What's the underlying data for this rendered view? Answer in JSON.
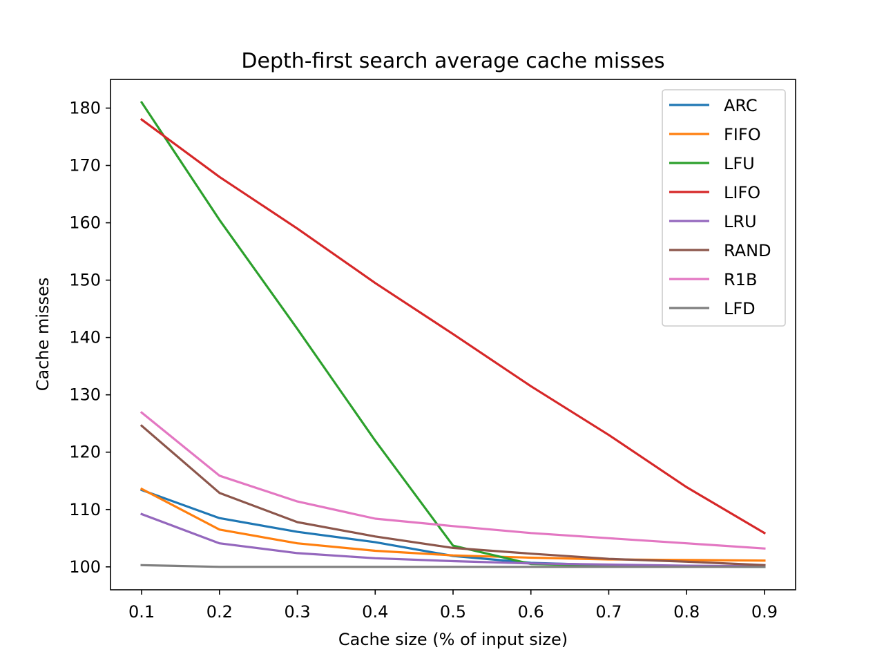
{
  "chart_data": {
    "type": "line",
    "title": "Depth-first search average cache misses",
    "xlabel": "Cache size (% of input size)",
    "ylabel": "Cache misses",
    "x": [
      0.1,
      0.2,
      0.3,
      0.4,
      0.5,
      0.6,
      0.7,
      0.8,
      0.9
    ],
    "x_ticks": [
      "0.1",
      "0.2",
      "0.3",
      "0.4",
      "0.5",
      "0.6",
      "0.7",
      "0.8",
      "0.9"
    ],
    "y_ticks": [
      "100",
      "110",
      "120",
      "130",
      "140",
      "150",
      "160",
      "170",
      "180"
    ],
    "xlim": [
      0.06,
      0.94
    ],
    "ylim": [
      96,
      185
    ],
    "grid": false,
    "legend_position": "top-right",
    "series": [
      {
        "name": "ARC",
        "color": "#1f77b4",
        "values": [
          113.4,
          108.5,
          106.1,
          104.3,
          101.9,
          100.7,
          100.3,
          100.1,
          100.0
        ]
      },
      {
        "name": "FIFO",
        "color": "#ff7f0e",
        "values": [
          113.6,
          106.5,
          104.1,
          102.8,
          102.0,
          101.6,
          101.3,
          101.2,
          101.1
        ]
      },
      {
        "name": "LFU",
        "color": "#2ca02c",
        "values": [
          181.0,
          160.5,
          141.5,
          122.0,
          103.7,
          100.5,
          100.2,
          100.1,
          100.0
        ]
      },
      {
        "name": "LIFO",
        "color": "#d62728",
        "values": [
          178.0,
          168.0,
          159.0,
          149.5,
          140.6,
          131.5,
          123.0,
          113.9,
          105.9
        ]
      },
      {
        "name": "LRU",
        "color": "#9467bd",
        "values": [
          109.2,
          104.1,
          102.4,
          101.5,
          101.0,
          100.6,
          100.4,
          100.2,
          100.1
        ]
      },
      {
        "name": "RAND",
        "color": "#8c564b",
        "values": [
          124.6,
          112.9,
          107.8,
          105.3,
          103.3,
          102.3,
          101.4,
          100.9,
          100.3
        ]
      },
      {
        "name": "R1B",
        "color": "#e377c2",
        "values": [
          126.9,
          115.9,
          111.4,
          108.4,
          107.1,
          105.9,
          105.0,
          104.1,
          103.2
        ]
      },
      {
        "name": "LFD",
        "color": "#7f7f7f",
        "values": [
          100.3,
          100.0,
          100.0,
          100.0,
          100.0,
          100.0,
          100.0,
          100.0,
          100.0
        ]
      }
    ]
  }
}
